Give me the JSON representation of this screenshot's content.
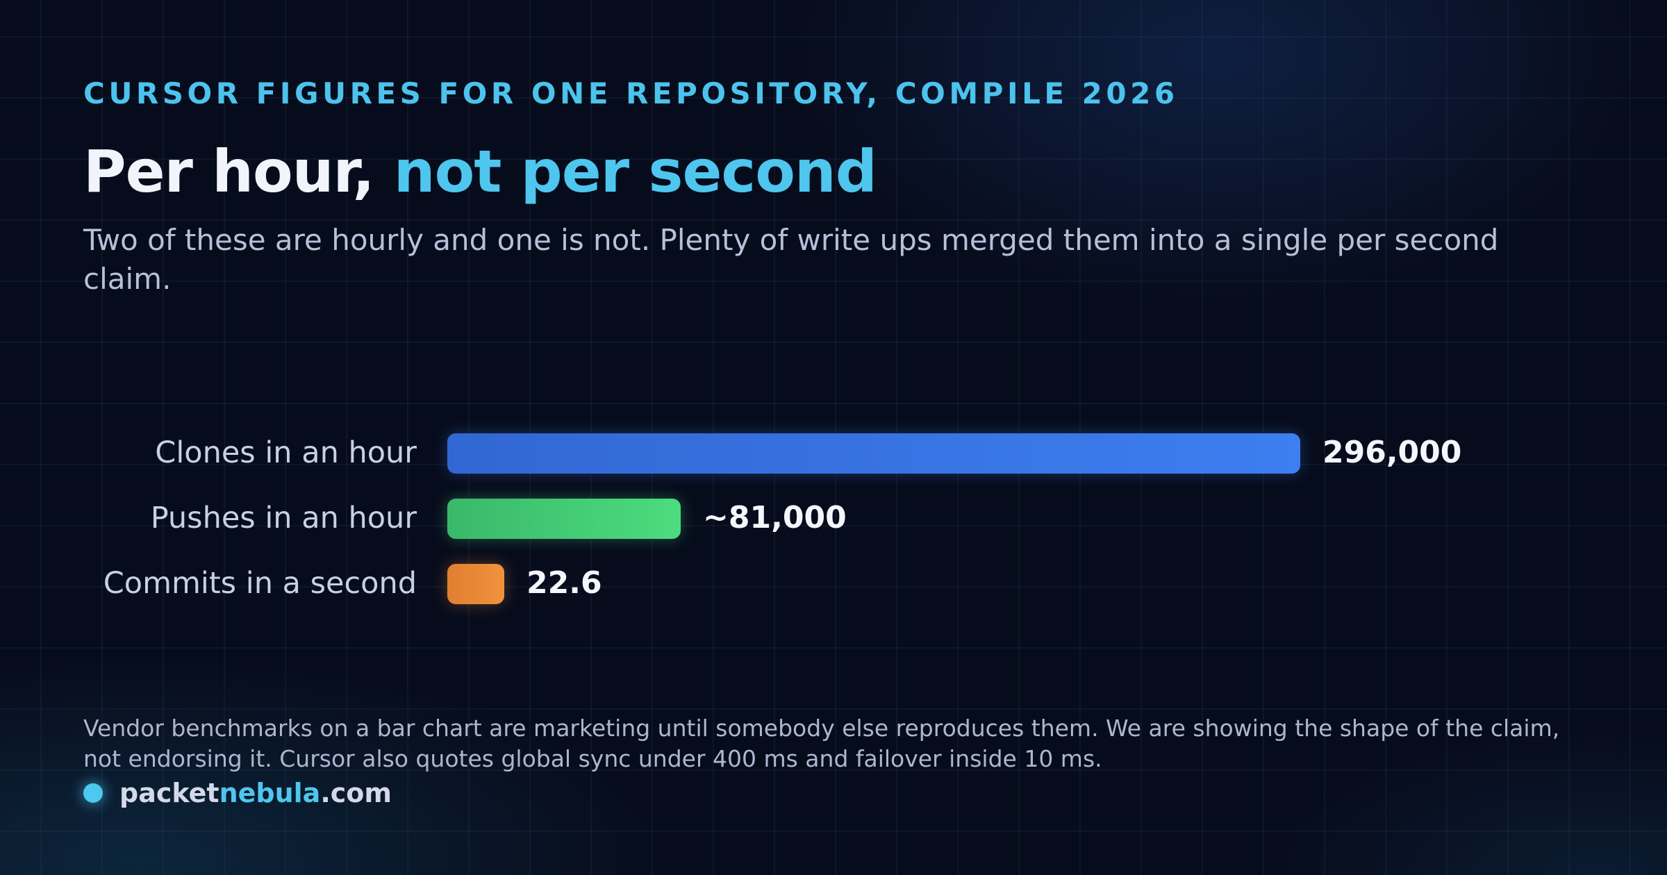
{
  "header": {
    "eyebrow": "CURSOR FIGURES FOR ONE REPOSITORY, COMPILE 2026",
    "title_main": "Per hour,",
    "title_accent": "not per second",
    "subtitle": "Two of these are hourly and one is not. Plenty of write ups merged them into a single per second claim."
  },
  "chart_data": {
    "type": "bar",
    "orientation": "horizontal",
    "title": "",
    "xlabel": "",
    "ylabel": "",
    "grid": false,
    "legend": "none",
    "categories": [
      "Clones in an hour",
      "Pushes in an hour",
      "Commits in a second"
    ],
    "values": [
      296000,
      81000,
      22.6
    ],
    "value_labels": [
      "296,000",
      "~81,000",
      "22.6"
    ],
    "colors": [
      [
        "#3267d3",
        "#3d7ef0"
      ],
      [
        "#3ab86a",
        "#4cdc7e"
      ],
      [
        "#e07f30",
        "#f1923e"
      ]
    ]
  },
  "footer": {
    "note": "Vendor benchmarks on a bar chart are marketing until somebody else reproduces them. We are showing the shape of the claim, not endorsing it. Cursor also quotes global sync under 400 ms and failover inside 10 ms.",
    "brand_pre": "packet",
    "brand_highlight": "nebula",
    "brand_post": ".com"
  }
}
